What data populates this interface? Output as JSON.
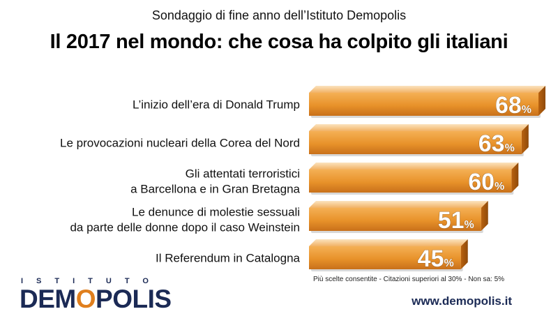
{
  "subtitle": "Sondaggio di fine anno dell’Istituto Demopolis",
  "title": "Il 2017 nel mondo: che cosa ha colpito gli italiani",
  "chart_data": {
    "type": "bar",
    "orientation": "horizontal",
    "categories": [
      [
        "L’inizio dell’era di Donald Trump"
      ],
      [
        "Le provocazioni nucleari della Corea del Nord"
      ],
      [
        "Gli attentati terroristici",
        "a Barcellona e in Gran Bretagna"
      ],
      [
        "Le denunce di molestie sessuali",
        "da parte delle donne dopo il caso Weinstein"
      ],
      [
        "Il Referendum in Catalogna"
      ]
    ],
    "values": [
      68,
      63,
      60,
      51,
      45
    ],
    "value_suffix": "%",
    "xlim": [
      0,
      100
    ],
    "grid": false,
    "legend": "none",
    "bar_color": "#e8922a"
  },
  "note": "Più scelte consentite - Citazioni superiori al 30% - Non sa: 5%",
  "logo": {
    "top": "ISTITUTO",
    "main_a": "DEM",
    "main_o": "O",
    "main_b": "POLIS"
  },
  "url": "www.demopolis.it"
}
